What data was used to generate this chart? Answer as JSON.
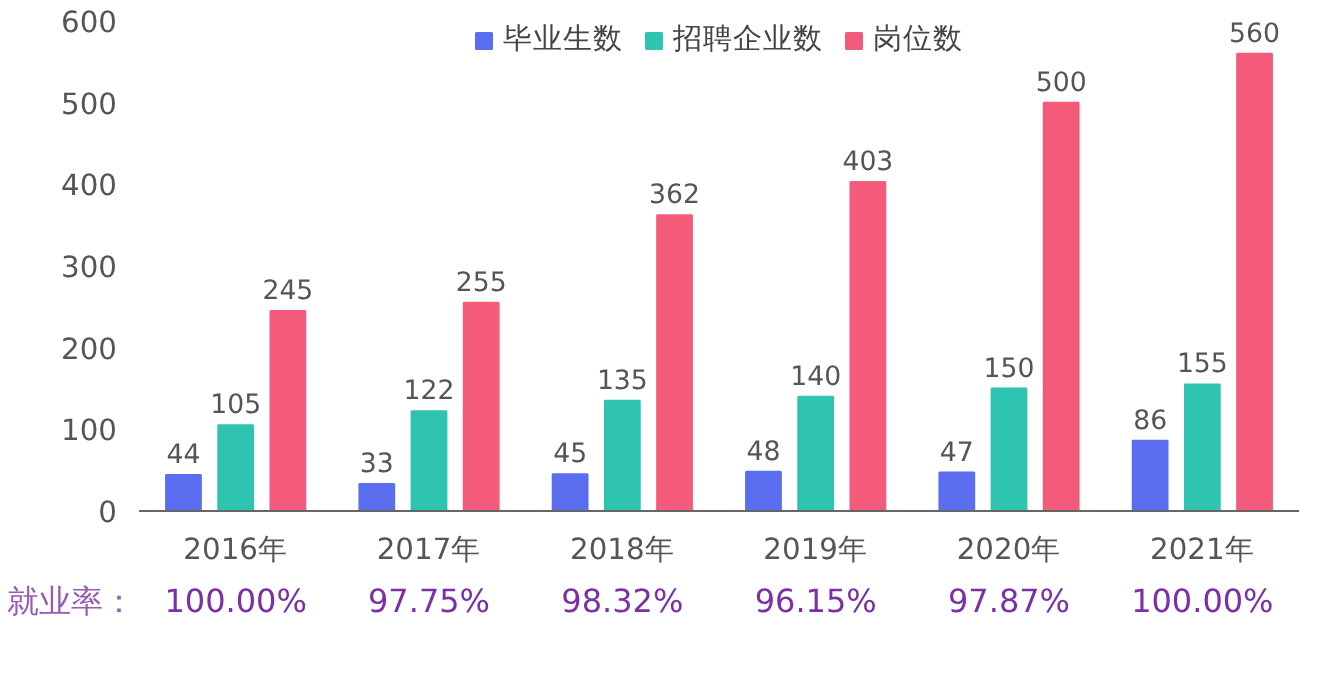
{
  "chart_data": {
    "type": "bar",
    "categories": [
      "2016年",
      "2017年",
      "2018年",
      "2019年",
      "2020年",
      "2021年"
    ],
    "series": [
      {
        "name": "毕业生数",
        "color": "#5b6ef0",
        "values": [
          44,
          33,
          45,
          48,
          47,
          86
        ]
      },
      {
        "name": "招聘企业数",
        "color": "#2ec4b0",
        "values": [
          105,
          122,
          135,
          140,
          150,
          155
        ]
      },
      {
        "name": "岗位数",
        "color": "#f45b7a",
        "values": [
          245,
          255,
          362,
          403,
          500,
          560
        ]
      }
    ],
    "ylim": [
      0,
      600
    ],
    "yticks": [
      0,
      100,
      200,
      300,
      400,
      500,
      600
    ],
    "grid": false,
    "legend": "top",
    "data_labels": true,
    "annotations": [
      "就业率：",
      "100.00%",
      "97.75%",
      "98.32%",
      "96.15%",
      "97.87%",
      "100.00%"
    ]
  }
}
